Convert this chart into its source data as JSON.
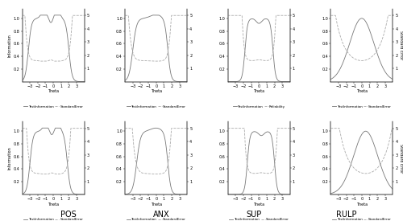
{
  "tif_shapes": [
    "pos_nc",
    "anx_nc",
    "sup_nc",
    "rulp_nc",
    "pos_cl",
    "anx_cl",
    "sup_cl",
    "rulp_cl"
  ],
  "legend_rows": [
    [
      "TestInformation",
      "StandardError"
    ],
    [
      "TestInformation",
      "StandardError"
    ],
    [
      "TestInformation",
      "Reliability"
    ],
    [
      "TestInformation",
      "StandardError"
    ],
    [
      "TestInformation",
      "StandardError"
    ],
    [
      "TestInformation",
      "StandardError"
    ],
    [
      "TestInformation",
      "StandardError"
    ],
    [
      "TestInformation",
      "StandardError"
    ]
  ],
  "bottom_labels": [
    "POS",
    "ANX",
    "SUP",
    "RULP"
  ],
  "line_color_tif": "#777777",
  "line_color_sem": "#aaaaaa",
  "line_width": 0.6,
  "tick_label_size": 3.5,
  "axis_label_size": 3.5,
  "legend_size": 3.0,
  "background_color": "#ffffff",
  "xlim": [
    -4,
    4
  ],
  "ylim_left": [
    0,
    1.1
  ],
  "ylim_right": [
    0,
    5
  ],
  "yticks_left": [
    0.2,
    0.4,
    0.6,
    0.8,
    1.0
  ],
  "yticks_right": [
    1,
    2,
    3,
    4,
    5
  ],
  "xticks": [
    -3,
    -2,
    -1,
    0,
    1,
    2,
    3
  ]
}
